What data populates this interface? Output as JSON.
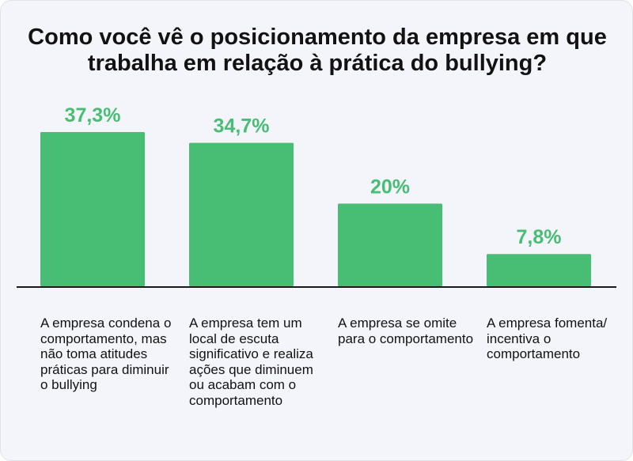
{
  "chart_data": {
    "type": "bar",
    "title": "Como você vê o posicionamento da empresa em que trabalha em relação à prática do bullying?",
    "categories": [
      "A empresa condena o comportamento, mas não toma atitudes práticas para diminuir o bullying",
      "A empresa tem um local de escuta significativo e realiza ações que diminuem ou acabam com o comportamento",
      "A empresa se omite para o comportamento",
      "A empresa fomenta/ incentiva o comportamento"
    ],
    "values": [
      37.3,
      34.7,
      20,
      7.8
    ],
    "value_labels": [
      "37,3%",
      "34,7%",
      "20%",
      "7,8%"
    ],
    "unit": "%",
    "xlabel": "",
    "ylabel": "",
    "ylim": [
      0,
      37.3
    ],
    "grid": false,
    "legend": "none",
    "colors": {
      "bar": "#48bd74",
      "label": "#48bd74",
      "text": "#121212",
      "background": "#f4f5fa"
    }
  }
}
